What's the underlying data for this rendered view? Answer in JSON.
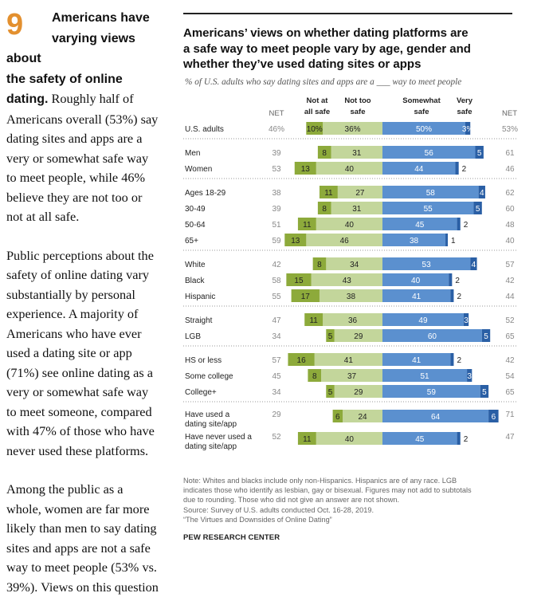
{
  "article": {
    "number": "9",
    "headline_lines": [
      "Americans have",
      "varying views about",
      "the safety of online"
    ],
    "headline_tail": "dating.",
    "p1_first": "Roughly half of",
    "p1_lines": [
      "Americans overall (53%) say",
      "dating sites and apps are a",
      "very or somewhat safe way",
      "to meet people, while 46%",
      "believe they are not too or",
      "not at all safe."
    ],
    "p2_lines": [
      "Public perceptions about the",
      "safety of online dating vary",
      "substantially by personal",
      "experience. A majority of",
      "Americans who have ever",
      "used a dating site or app",
      "(71%) see online dating as a",
      "very or somewhat safe way",
      "to meet someone, compared",
      "with 47% of those who have",
      "never used these platforms."
    ],
    "p3_lines": [
      "Among the public as a",
      "whole, women are far more",
      "likely than men to say dating",
      "sites and apps are not a safe",
      "way to meet people (53% vs.",
      "39%). Views on this question"
    ]
  },
  "chart_data": {
    "type": "bar",
    "title": "Americans’ views on whether dating platforms are a safe way to meet people vary by age, gender and whether they’ve used dating sites or apps",
    "title_lines": [
      "Americans’ views on whether dating platforms are",
      "a safe way to meet people vary by age, gender and",
      "whether they’ve used dating sites or apps"
    ],
    "subtitle": "% of U.S. adults who say dating sites and apps are a ___ way to meet people",
    "column_headers": {
      "net_left": "NET",
      "not_at_all_safe": [
        "Not at",
        "all safe"
      ],
      "not_too_safe": [
        "Not too",
        "safe"
      ],
      "somewhat_safe": [
        "Somewhat",
        "safe"
      ],
      "very_safe": [
        "Very",
        "safe"
      ],
      "net_right": "NET"
    },
    "series": [
      {
        "name": "Not at all safe",
        "color": "#8daa3b"
      },
      {
        "name": "Not too safe",
        "color": "#c3d69b"
      },
      {
        "name": "Somewhat safe",
        "color": "#5b90cf"
      },
      {
        "name": "Very safe",
        "color": "#2a5fa5"
      }
    ],
    "groups": [
      [
        {
          "label": [
            "U.S. adults"
          ],
          "net_unsafe": "46%",
          "not_at_all": 10,
          "not_too": 36,
          "somewhat": 50,
          "very": 3,
          "net_safe": "53%",
          "pct": true
        }
      ],
      [
        {
          "label": [
            "Men"
          ],
          "net_unsafe": "39",
          "not_at_all": 8,
          "not_too": 31,
          "somewhat": 56,
          "very": 5,
          "net_safe": "61"
        },
        {
          "label": [
            "Women"
          ],
          "net_unsafe": "53",
          "not_at_all": 13,
          "not_too": 40,
          "somewhat": 44,
          "very": 2,
          "net_safe": "46"
        }
      ],
      [
        {
          "label": [
            "Ages 18-29"
          ],
          "net_unsafe": "38",
          "not_at_all": 11,
          "not_too": 27,
          "somewhat": 58,
          "very": 4,
          "net_safe": "62"
        },
        {
          "label": [
            "30-49"
          ],
          "net_unsafe": "39",
          "not_at_all": 8,
          "not_too": 31,
          "somewhat": 55,
          "very": 5,
          "net_safe": "60"
        },
        {
          "label": [
            "50-64"
          ],
          "net_unsafe": "51",
          "not_at_all": 11,
          "not_too": 40,
          "somewhat": 45,
          "very": 2,
          "net_safe": "48"
        },
        {
          "label": [
            "65+"
          ],
          "net_unsafe": "59",
          "not_at_all": 13,
          "not_too": 46,
          "somewhat": 38,
          "very": 1,
          "net_safe": "40"
        }
      ],
      [
        {
          "label": [
            "White"
          ],
          "net_unsafe": "42",
          "not_at_all": 8,
          "not_too": 34,
          "somewhat": 53,
          "very": 4,
          "net_safe": "57"
        },
        {
          "label": [
            "Black"
          ],
          "net_unsafe": "58",
          "not_at_all": 15,
          "not_too": 43,
          "somewhat": 40,
          "very": 2,
          "net_safe": "42"
        },
        {
          "label": [
            "Hispanic"
          ],
          "net_unsafe": "55",
          "not_at_all": 17,
          "not_too": 38,
          "somewhat": 41,
          "very": 2,
          "net_safe": "44"
        }
      ],
      [
        {
          "label": [
            "Straight"
          ],
          "net_unsafe": "47",
          "not_at_all": 11,
          "not_too": 36,
          "somewhat": 49,
          "very": 3,
          "net_safe": "52"
        },
        {
          "label": [
            "LGB"
          ],
          "net_unsafe": "34",
          "not_at_all": 5,
          "not_too": 29,
          "somewhat": 60,
          "very": 5,
          "net_safe": "65"
        }
      ],
      [
        {
          "label": [
            "HS or less"
          ],
          "net_unsafe": "57",
          "not_at_all": 16,
          "not_too": 41,
          "somewhat": 41,
          "very": 2,
          "net_safe": "42"
        },
        {
          "label": [
            "Some college"
          ],
          "net_unsafe": "45",
          "not_at_all": 8,
          "not_too": 37,
          "somewhat": 51,
          "very": 3,
          "net_safe": "54"
        },
        {
          "label": [
            "College+"
          ],
          "net_unsafe": "34",
          "not_at_all": 5,
          "not_too": 29,
          "somewhat": 59,
          "very": 5,
          "net_safe": "65"
        }
      ],
      [
        {
          "label": [
            "Have used a",
            "dating site/app"
          ],
          "net_unsafe": "29",
          "not_at_all": 6,
          "not_too": 24,
          "somewhat": 64,
          "very": 6,
          "net_safe": "71"
        },
        {
          "label": [
            "Have never used a",
            "dating site/app"
          ],
          "net_unsafe": "52",
          "not_at_all": 11,
          "not_too": 40,
          "somewhat": 45,
          "very": 2,
          "net_safe": "47"
        }
      ]
    ]
  },
  "note_lines": [
    "Note: Whites and blacks include only non-Hispanics. Hispanics are of any race. LGB",
    "indicates those who identify as lesbian, gay or bisexual. Figures may not add to subtotals",
    "due to rounding. Those who did not give an answer are not shown.",
    "Source: Survey of U.S. adults conducted Oct. 16-28, 2019.",
    "“The Virtues and Downsides of Online Dating”"
  ],
  "credit": "PEW RESEARCH CENTER"
}
